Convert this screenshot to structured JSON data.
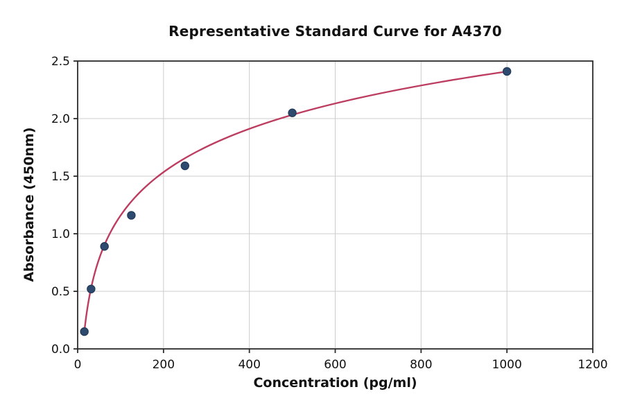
{
  "figure": {
    "title": "Representative Standard Curve for A4370",
    "xlabel": "Concentration (pg/ml)",
    "ylabel": "Absorbance (450nm)"
  },
  "chart_data": {
    "type": "scatter",
    "title": "Representative Standard Curve for A4370",
    "xlabel": "Concentration (pg/ml)",
    "ylabel": "Absorbance (450nm)",
    "xlim": [
      0,
      1200
    ],
    "ylim": [
      0,
      2.5
    ],
    "x_ticks": [
      0,
      200,
      400,
      600,
      800,
      1000,
      1200
    ],
    "y_ticks": [
      0,
      0.5,
      1,
      1.5,
      2,
      2.5
    ],
    "grid": true,
    "legend": "none",
    "points": [
      [
        15.6,
        0.15
      ],
      [
        31.25,
        0.52
      ],
      [
        62.5,
        0.89
      ],
      [
        125,
        1.16
      ],
      [
        250,
        1.59
      ],
      [
        500,
        2.05
      ],
      [
        1000,
        2.41
      ]
    ],
    "fit_curve": {
      "type": "logarithmic",
      "equation": "y = a + b*ln(x)",
      "a": -1.342,
      "b": 0.543,
      "x_range": [
        15.6,
        1000
      ]
    },
    "colors": {
      "marker": "#2e4a6e",
      "marker_edge": "#223a57",
      "curve": "#bd3d60",
      "grid": "#cccccc",
      "spine": "#2b2b2b",
      "text": "#111111"
    }
  }
}
